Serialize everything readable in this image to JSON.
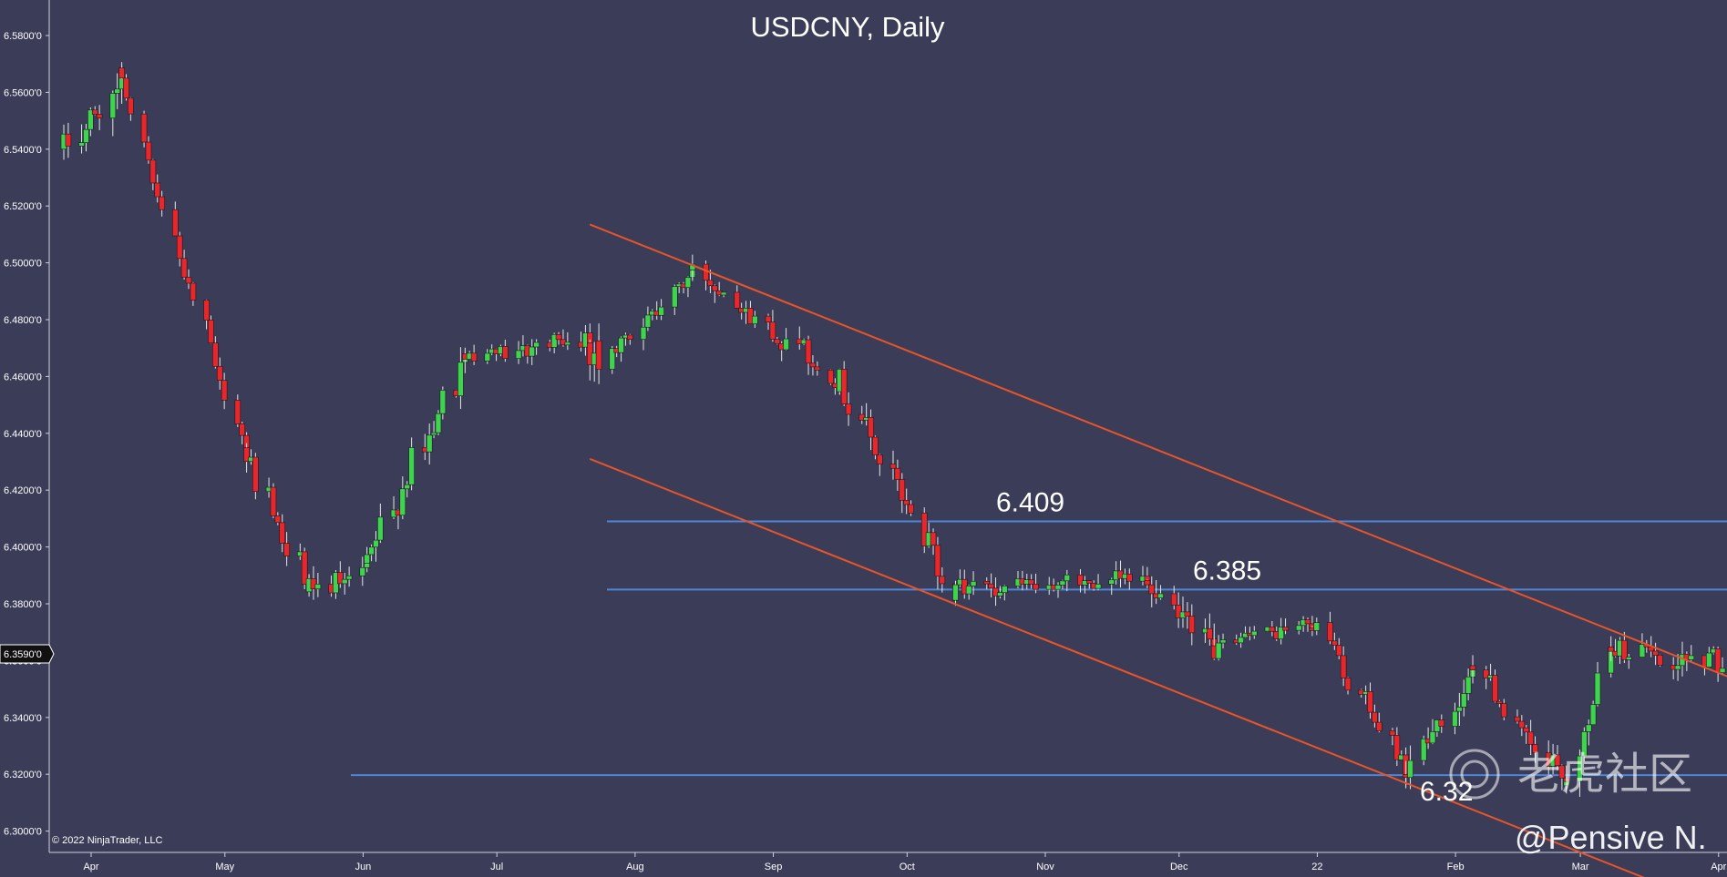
{
  "chart_data": {
    "type": "candlestick",
    "title": "USDCNY, Daily",
    "ylim": [
      6.2925,
      6.5925
    ],
    "y_ticks": [
      "6.5800'0",
      "6.5600'0",
      "6.5400'0",
      "6.5200'0",
      "6.5000'0",
      "6.4800'0",
      "6.4600'0",
      "6.4400'0",
      "6.4200'0",
      "6.4000'0",
      "6.3800'0",
      "6.3600'0",
      "6.3400'0",
      "6.3200'0",
      "6.3000'0"
    ],
    "x_ticks": [
      "Apr",
      "May",
      "Jun",
      "Jul",
      "Aug",
      "Sep",
      "Oct",
      "Nov",
      "Dec",
      "22",
      "Feb",
      "Mar",
      "Apr"
    ],
    "current_price": "6.3590'0",
    "copyright": "© 2022 NinjaTrader, LLC",
    "colors": {
      "background": "#3b3d58",
      "up": "#3fd44f",
      "down": "#e8262c",
      "channel": "#e8542a",
      "level": "#4f86d6"
    },
    "horizontal_levels": [
      {
        "label": "6.409",
        "value": 6.409
      },
      {
        "label": "6.385",
        "value": 6.385
      },
      {
        "label": "6.32",
        "value": 6.3197
      }
    ],
    "channel_lines": [
      {
        "from": [
          "2021-07-29",
          6.5135
        ],
        "to": [
          "2022-04-08",
          6.3545
        ]
      },
      {
        "from": [
          "2021-07-29",
          6.431
        ],
        "to": [
          "2022-04-08",
          6.272
        ]
      }
    ],
    "segments": [
      {
        "from": "2021-04-01",
        "to": "2021-04-14",
        "start": 6.54,
        "end": 6.563,
        "amp": 0.012
      },
      {
        "from": "2021-04-14",
        "to": "2021-05-12",
        "start": 6.563,
        "end": 6.432,
        "amp": 0.006
      },
      {
        "from": "2021-05-12",
        "to": "2021-05-26",
        "start": 6.432,
        "end": 6.385,
        "amp": 0.008
      },
      {
        "from": "2021-05-26",
        "to": "2021-06-08",
        "start": 6.385,
        "end": 6.393,
        "amp": 0.008
      },
      {
        "from": "2021-06-08",
        "to": "2021-06-30",
        "start": 6.393,
        "end": 6.467,
        "amp": 0.01
      },
      {
        "from": "2021-06-30",
        "to": "2021-07-28",
        "start": 6.467,
        "end": 6.474,
        "amp": 0.007
      },
      {
        "from": "2021-07-28",
        "to": "2021-07-30",
        "start": 6.474,
        "end": 6.465,
        "amp": 0.02
      },
      {
        "from": "2021-07-30",
        "to": "2021-08-20",
        "start": 6.465,
        "end": 6.497,
        "amp": 0.007
      },
      {
        "from": "2021-08-20",
        "to": "2021-09-22",
        "start": 6.497,
        "end": 6.458,
        "amp": 0.008
      },
      {
        "from": "2021-09-22",
        "to": "2021-10-18",
        "start": 6.458,
        "end": 6.385,
        "amp": 0.01
      },
      {
        "from": "2021-10-18",
        "to": "2021-11-30",
        "start": 6.385,
        "end": 6.389,
        "amp": 0.007
      },
      {
        "from": "2021-11-30",
        "to": "2021-12-15",
        "start": 6.389,
        "end": 6.363,
        "amp": 0.01
      },
      {
        "from": "2021-12-15",
        "to": "2022-01-06",
        "start": 6.363,
        "end": 6.374,
        "amp": 0.006
      },
      {
        "from": "2022-01-06",
        "to": "2022-01-27",
        "start": 6.374,
        "end": 6.321,
        "amp": 0.007
      },
      {
        "from": "2022-01-27",
        "to": "2022-02-11",
        "start": 6.321,
        "end": 6.357,
        "amp": 0.01
      },
      {
        "from": "2022-02-11",
        "to": "2022-03-04",
        "start": 6.357,
        "end": 6.315,
        "amp": 0.008
      },
      {
        "from": "2022-03-04",
        "to": "2022-03-14",
        "start": 6.315,
        "end": 6.365,
        "amp": 0.01
      },
      {
        "from": "2022-03-14",
        "to": "2022-04-08",
        "start": 6.365,
        "end": 6.359,
        "amp": 0.008
      }
    ],
    "watermark": {
      "cn": "老虎社区",
      "author": "@Pensive N."
    }
  }
}
